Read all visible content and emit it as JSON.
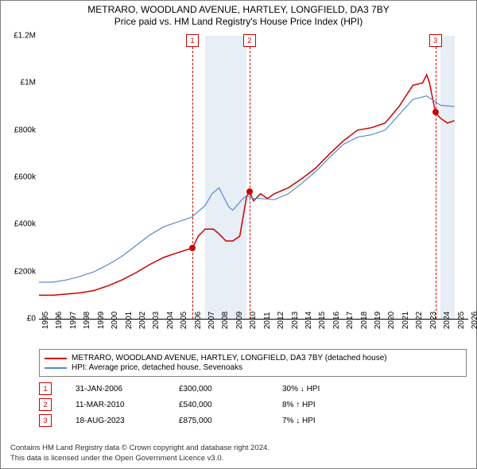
{
  "title_line1": "METRARO, WOODLAND AVENUE, HARTLEY, LONGFIELD, DA3 7BY",
  "title_line2": "Price paid vs. HM Land Registry's House Price Index (HPI)",
  "chart": {
    "type": "line",
    "y_ticks": [
      0,
      200000,
      400000,
      600000,
      800000,
      1000000,
      1200000
    ],
    "y_tick_labels": [
      "£0",
      "£200k",
      "£400k",
      "£600k",
      "£800k",
      "£1M",
      "£1.2M"
    ],
    "ylim": [
      0,
      1200000
    ],
    "x_ticks": [
      1995,
      1996,
      1997,
      1998,
      1999,
      2000,
      2001,
      2002,
      2003,
      2004,
      2005,
      2006,
      2007,
      2008,
      2009,
      2010,
      2011,
      2012,
      2013,
      2014,
      2015,
      2016,
      2017,
      2018,
      2019,
      2020,
      2021,
      2022,
      2023,
      2024,
      2025,
      2026
    ],
    "xlim": [
      1995,
      2026
    ],
    "bands": [
      [
        2007,
        2010
      ],
      [
        2024,
        2025
      ]
    ],
    "background_color": "#ffffff",
    "grid_color": "#d0d0d0",
    "series": [
      {
        "name": "price_paid",
        "color": "#cc0000",
        "width": 1.5,
        "points": [
          [
            1995,
            100000
          ],
          [
            1996,
            100000
          ],
          [
            1997,
            105000
          ],
          [
            1998,
            110000
          ],
          [
            1999,
            120000
          ],
          [
            2000,
            140000
          ],
          [
            2001,
            165000
          ],
          [
            2002,
            195000
          ],
          [
            2003,
            230000
          ],
          [
            2004,
            260000
          ],
          [
            2005,
            280000
          ],
          [
            2006.08,
            300000
          ],
          [
            2006.5,
            350000
          ],
          [
            2007,
            380000
          ],
          [
            2007.6,
            380000
          ],
          [
            2008,
            360000
          ],
          [
            2008.5,
            330000
          ],
          [
            2009,
            330000
          ],
          [
            2009.5,
            350000
          ],
          [
            2010,
            520000
          ],
          [
            2010.2,
            540000
          ],
          [
            2010.5,
            500000
          ],
          [
            2011,
            530000
          ],
          [
            2011.5,
            510000
          ],
          [
            2012,
            530000
          ],
          [
            2013,
            555000
          ],
          [
            2014,
            595000
          ],
          [
            2015,
            640000
          ],
          [
            2016,
            700000
          ],
          [
            2017,
            755000
          ],
          [
            2018,
            800000
          ],
          [
            2019,
            810000
          ],
          [
            2020,
            830000
          ],
          [
            2021,
            900000
          ],
          [
            2022,
            990000
          ],
          [
            2022.7,
            1000000
          ],
          [
            2023,
            1035000
          ],
          [
            2023.2,
            1000000
          ],
          [
            2023.63,
            875000
          ],
          [
            2024,
            850000
          ],
          [
            2024.5,
            830000
          ],
          [
            2025,
            840000
          ]
        ]
      },
      {
        "name": "hpi",
        "color": "#5b8ac6",
        "width": 1.2,
        "points": [
          [
            1995,
            155000
          ],
          [
            1996,
            155000
          ],
          [
            1997,
            165000
          ],
          [
            1998,
            180000
          ],
          [
            1999,
            200000
          ],
          [
            2000,
            230000
          ],
          [
            2001,
            265000
          ],
          [
            2002,
            310000
          ],
          [
            2003,
            355000
          ],
          [
            2004,
            390000
          ],
          [
            2005,
            410000
          ],
          [
            2006,
            430000
          ],
          [
            2007,
            480000
          ],
          [
            2007.5,
            530000
          ],
          [
            2008,
            555000
          ],
          [
            2008.7,
            475000
          ],
          [
            2009,
            460000
          ],
          [
            2009.7,
            508000
          ],
          [
            2010,
            522000
          ],
          [
            2010.5,
            510000
          ],
          [
            2011,
            510000
          ],
          [
            2012,
            505000
          ],
          [
            2013,
            530000
          ],
          [
            2014,
            575000
          ],
          [
            2015,
            625000
          ],
          [
            2016,
            685000
          ],
          [
            2017,
            740000
          ],
          [
            2018,
            770000
          ],
          [
            2019,
            780000
          ],
          [
            2020,
            800000
          ],
          [
            2021,
            865000
          ],
          [
            2022,
            930000
          ],
          [
            2023,
            945000
          ],
          [
            2024,
            905000
          ],
          [
            2025,
            900000
          ]
        ]
      }
    ],
    "sale_markers": [
      {
        "num": "1",
        "x": 2006.08,
        "y": 300000
      },
      {
        "num": "2",
        "x": 2010.2,
        "y": 540000
      },
      {
        "num": "3",
        "x": 2023.63,
        "y": 875000
      }
    ]
  },
  "legend": {
    "items": [
      {
        "color": "#cc0000",
        "label": "METRARO, WOODLAND AVENUE, HARTLEY, LONGFIELD, DA3 7BY (detached house)"
      },
      {
        "color": "#5b8ac6",
        "label": "HPI: Average price, detached house, Sevenoaks"
      }
    ]
  },
  "events": [
    {
      "num": "1",
      "date": "31-JAN-2006",
      "price": "£300,000",
      "delta": "30% ↓ HPI"
    },
    {
      "num": "2",
      "date": "11-MAR-2010",
      "price": "£540,000",
      "delta": "8% ↑ HPI"
    },
    {
      "num": "3",
      "date": "18-AUG-2023",
      "price": "£875,000",
      "delta": "7% ↓ HPI"
    }
  ],
  "footer_line1": "Contains HM Land Registry data © Crown copyright and database right 2024.",
  "footer_line2": "This data is licensed under the Open Government Licence v3.0."
}
